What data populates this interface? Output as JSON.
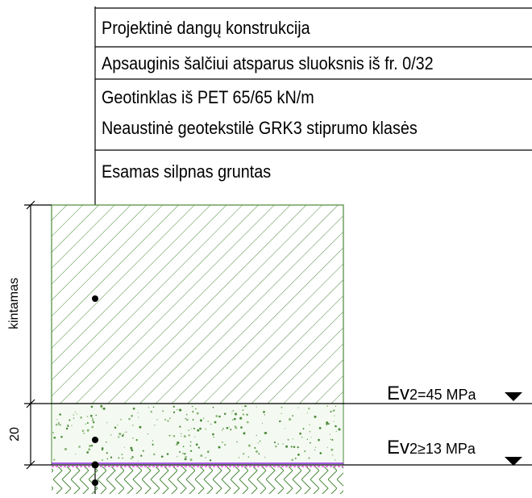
{
  "layer_labels": [
    "Projektinė dangų konstrukcija",
    "Apsauginis šalčiui atsparus sluoksnis iš fr. 0/32",
    "Geotinklas iš PET 65/65 kN/m",
    "Neaustinė geotekstilė GRK3 stiprumo klasės",
    "Esamas silpnas gruntas"
  ],
  "modulus_labels": [
    {
      "prefix": "Ev",
      "suffix": "2=45 MPa"
    },
    {
      "prefix": "Ev",
      "suffix": "2≥13 MPa"
    }
  ],
  "dimensions": {
    "upper": "kintamas",
    "lower": "20"
  },
  "colors": {
    "hatch": "#4a8a3a",
    "fill_layer": "#eef6ea",
    "geogrid": "#8a2be2",
    "geotextile": "#e030e0",
    "line": "#000000"
  }
}
